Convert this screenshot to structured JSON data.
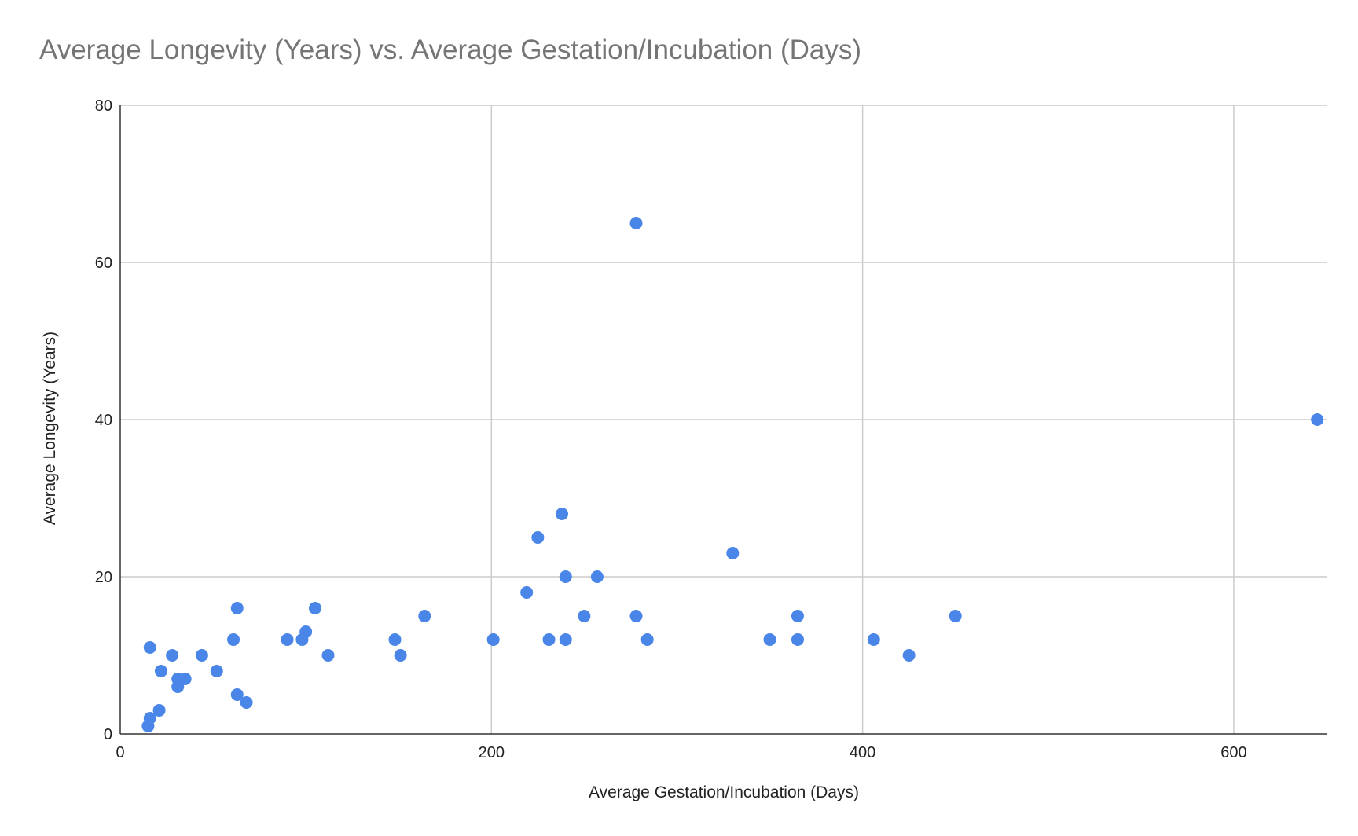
{
  "chart_data": {
    "type": "scatter",
    "title": "Average Longevity (Years) vs. Average Gestation/Incubation (Days)",
    "xlabel": "Average Gestation/Incubation (Days)",
    "ylabel": "Average Longevity (Years)",
    "xlim": [
      0,
      650
    ],
    "ylim": [
      0,
      80
    ],
    "xticks": [
      0,
      200,
      400,
      600
    ],
    "yticks": [
      0,
      20,
      40,
      60,
      80
    ],
    "grid": true,
    "legend": "none",
    "point_color": "#4a86e8",
    "points": [
      {
        "x": 15,
        "y": 1
      },
      {
        "x": 16,
        "y": 2
      },
      {
        "x": 16,
        "y": 11
      },
      {
        "x": 21,
        "y": 3
      },
      {
        "x": 22,
        "y": 8
      },
      {
        "x": 28,
        "y": 10
      },
      {
        "x": 31,
        "y": 7
      },
      {
        "x": 31,
        "y": 6
      },
      {
        "x": 35,
        "y": 7
      },
      {
        "x": 44,
        "y": 10
      },
      {
        "x": 52,
        "y": 8
      },
      {
        "x": 61,
        "y": 12
      },
      {
        "x": 63,
        "y": 16
      },
      {
        "x": 63,
        "y": 5
      },
      {
        "x": 68,
        "y": 4
      },
      {
        "x": 90,
        "y": 12
      },
      {
        "x": 98,
        "y": 12
      },
      {
        "x": 100,
        "y": 13
      },
      {
        "x": 105,
        "y": 16
      },
      {
        "x": 112,
        "y": 10
      },
      {
        "x": 148,
        "y": 12
      },
      {
        "x": 151,
        "y": 10
      },
      {
        "x": 164,
        "y": 15
      },
      {
        "x": 201,
        "y": 12
      },
      {
        "x": 219,
        "y": 18
      },
      {
        "x": 225,
        "y": 25
      },
      {
        "x": 231,
        "y": 12
      },
      {
        "x": 238,
        "y": 28
      },
      {
        "x": 240,
        "y": 20
      },
      {
        "x": 240,
        "y": 12
      },
      {
        "x": 250,
        "y": 15
      },
      {
        "x": 257,
        "y": 20
      },
      {
        "x": 278,
        "y": 65
      },
      {
        "x": 278,
        "y": 15
      },
      {
        "x": 284,
        "y": 12
      },
      {
        "x": 330,
        "y": 23
      },
      {
        "x": 350,
        "y": 12
      },
      {
        "x": 365,
        "y": 15
      },
      {
        "x": 365,
        "y": 12
      },
      {
        "x": 406,
        "y": 12
      },
      {
        "x": 425,
        "y": 10
      },
      {
        "x": 450,
        "y": 15
      },
      {
        "x": 645,
        "y": 40
      }
    ]
  }
}
